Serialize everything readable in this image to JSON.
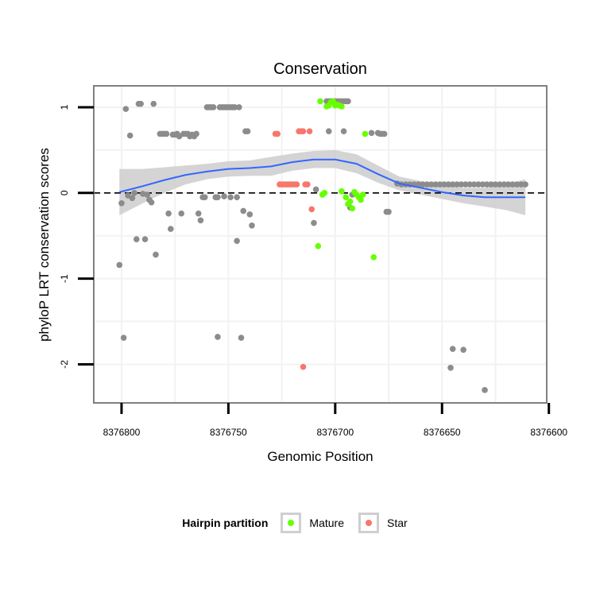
{
  "chart_data": {
    "type": "scatter",
    "title": "Conservation",
    "xlabel": "Genomic Position",
    "ylabel": "phyloP LRT conservation scores",
    "x_reversed": true,
    "xlim": [
      8376601,
      8376813
    ],
    "ylim": [
      -2.45,
      1.25
    ],
    "xticks": [
      8376800,
      8376750,
      8376700,
      8376650,
      8376600
    ],
    "xtick_labels": [
      "8376800",
      "8376750",
      "8376700",
      "8376650",
      "8376600"
    ],
    "yticks": [
      1,
      0,
      -1,
      -2
    ],
    "ytick_labels": [
      "1",
      "0",
      "-1",
      "-2"
    ],
    "reference_line": {
      "y": 0,
      "style": "dashed"
    },
    "colors": {
      "Other": "#8c8c8c",
      "Mature": "#66ff00",
      "Star": "#f8766d",
      "smooth": "#3366ff",
      "ribbon": "#cccccc",
      "panel_border": "#808080",
      "grid": "#f2f2f2"
    },
    "legend": {
      "title": "Hairpin partition",
      "position": "bottom",
      "entries": [
        {
          "label": "Mature",
          "color": "#66ff00"
        },
        {
          "label": "Star",
          "color": "#f8766d"
        }
      ]
    },
    "series": [
      {
        "name": "Other",
        "points": [
          [
            8376801,
            -0.84
          ],
          [
            8376800,
            -0.12
          ],
          [
            8376799,
            -1.69
          ],
          [
            8376798,
            0.98
          ],
          [
            8376797,
            -0.03
          ],
          [
            8376796,
            0.67
          ],
          [
            8376795,
            -0.06
          ],
          [
            8376794,
            0.0
          ],
          [
            8376793,
            -0.54
          ],
          [
            8376792,
            1.04
          ],
          [
            8376791,
            1.04
          ],
          [
            8376790,
            -0.01
          ],
          [
            8376789,
            -0.54
          ],
          [
            8376788,
            -0.02
          ],
          [
            8376787,
            -0.08
          ],
          [
            8376786,
            -0.11
          ],
          [
            8376785,
            1.04
          ],
          [
            8376784,
            -0.72
          ],
          [
            8376782,
            0.69
          ],
          [
            8376781,
            0.69
          ],
          [
            8376780,
            0.69
          ],
          [
            8376779,
            0.69
          ],
          [
            8376778,
            -0.24
          ],
          [
            8376777,
            -0.42
          ],
          [
            8376776,
            0.68
          ],
          [
            8376775,
            0.68
          ],
          [
            8376774,
            0.69
          ],
          [
            8376773,
            0.66
          ],
          [
            8376772,
            -0.24
          ],
          [
            8376771,
            0.69
          ],
          [
            8376770,
            0.69
          ],
          [
            8376769,
            0.69
          ],
          [
            8376768,
            0.66
          ],
          [
            8376767,
            0.68
          ],
          [
            8376766,
            0.66
          ],
          [
            8376765,
            0.69
          ],
          [
            8376764,
            -0.24
          ],
          [
            8376763,
            -0.32
          ],
          [
            8376762,
            -0.05
          ],
          [
            8376761,
            -0.05
          ],
          [
            8376760,
            1.0
          ],
          [
            8376759,
            1.0
          ],
          [
            8376758,
            1.0
          ],
          [
            8376757,
            1.0
          ],
          [
            8376756,
            -0.05
          ],
          [
            8376755,
            -0.05
          ],
          [
            8376754,
            1.0
          ],
          [
            8376753,
            1.0
          ],
          [
            8376752,
            1.0
          ],
          [
            8376751,
            1.0
          ],
          [
            8376750,
            1.0
          ],
          [
            8376749,
            1.0
          ],
          [
            8376748,
            1.0
          ],
          [
            8376747,
            1.0
          ],
          [
            8376746,
            -0.56
          ],
          [
            8376745,
            1.0
          ],
          [
            8376744,
            -1.69
          ],
          [
            8376743,
            -0.21
          ],
          [
            8376742,
            0.72
          ],
          [
            8376741,
            0.72
          ],
          [
            8376740,
            -0.25
          ],
          [
            8376739,
            -0.38
          ],
          [
            8376755,
            -1.68
          ],
          [
            8376746,
            -0.05
          ],
          [
            8376749,
            -0.05
          ],
          [
            8376752,
            -0.04
          ],
          [
            8376709,
            0.04
          ],
          [
            8376710,
            -0.35
          ],
          [
            8376703,
            0.72
          ],
          [
            8376696,
            0.72
          ],
          [
            8376693,
            -0.17
          ],
          [
            8376694,
            1.07
          ],
          [
            8376695,
            1.07
          ],
          [
            8376696,
            1.07
          ],
          [
            8376697,
            1.07
          ],
          [
            8376698,
            1.07
          ],
          [
            8376699,
            1.07
          ],
          [
            8376700,
            1.07
          ],
          [
            8376701,
            1.07
          ],
          [
            8376702,
            1.07
          ],
          [
            8376703,
            1.07
          ],
          [
            8376704,
            1.07
          ],
          [
            8376692,
            -0.02
          ],
          [
            8376691,
            0.0
          ],
          [
            8376683,
            0.7
          ],
          [
            8376680,
            0.7
          ],
          [
            8376679,
            0.69
          ],
          [
            8376678,
            0.69
          ],
          [
            8376677,
            0.69
          ],
          [
            8376676,
            -0.22
          ],
          [
            8376675,
            -0.22
          ],
          [
            8376671,
            0.11
          ],
          [
            8376669,
            0.1
          ],
          [
            8376667,
            0.1
          ],
          [
            8376665,
            0.1
          ],
          [
            8376663,
            0.1
          ],
          [
            8376661,
            0.1
          ],
          [
            8376659,
            0.1
          ],
          [
            8376657,
            0.1
          ],
          [
            8376655,
            0.1
          ],
          [
            8376653,
            0.1
          ],
          [
            8376651,
            0.1
          ],
          [
            8376649,
            0.1
          ],
          [
            8376647,
            0.1
          ],
          [
            8376645,
            0.1
          ],
          [
            8376643,
            0.1
          ],
          [
            8376641,
            0.1
          ],
          [
            8376639,
            0.1
          ],
          [
            8376637,
            0.1
          ],
          [
            8376635,
            0.1
          ],
          [
            8376633,
            0.1
          ],
          [
            8376631,
            0.1
          ],
          [
            8376629,
            0.1
          ],
          [
            8376627,
            0.1
          ],
          [
            8376625,
            0.1
          ],
          [
            8376623,
            0.1
          ],
          [
            8376621,
            0.1
          ],
          [
            8376619,
            0.1
          ],
          [
            8376617,
            0.1
          ],
          [
            8376615,
            0.1
          ],
          [
            8376613,
            0.1
          ],
          [
            8376611,
            0.1
          ],
          [
            8376646,
            -2.04
          ],
          [
            8376645,
            -1.82
          ],
          [
            8376640,
            -1.83
          ],
          [
            8376630,
            -2.3
          ]
        ]
      },
      {
        "name": "Mature",
        "points": [
          [
            8376708,
            -0.62
          ],
          [
            8376707,
            1.07
          ],
          [
            8376706,
            -0.02
          ],
          [
            8376705,
            0.0
          ],
          [
            8376704,
            1.01
          ],
          [
            8376703,
            1.02
          ],
          [
            8376702,
            1.06
          ],
          [
            8376701,
            1.07
          ],
          [
            8376700,
            1.02
          ],
          [
            8376699,
            1.03
          ],
          [
            8376698,
            1.02
          ],
          [
            8376697,
            1.01
          ],
          [
            8376697,
            0.02
          ],
          [
            8376695,
            -0.05
          ],
          [
            8376694,
            -0.13
          ],
          [
            8376693,
            -0.1
          ],
          [
            8376692,
            -0.18
          ],
          [
            8376691,
            0.01
          ],
          [
            8376690,
            -0.02
          ],
          [
            8376689,
            -0.05
          ],
          [
            8376688,
            -0.08
          ],
          [
            8376687,
            -0.02
          ],
          [
            8376686,
            0.69
          ],
          [
            8376682,
            -0.75
          ]
        ]
      },
      {
        "name": "Star",
        "points": [
          [
            8376728,
            0.69
          ],
          [
            8376727,
            0.69
          ],
          [
            8376726,
            0.1
          ],
          [
            8376725,
            0.1
          ],
          [
            8376724,
            0.1
          ],
          [
            8376723,
            0.1
          ],
          [
            8376722,
            0.1
          ],
          [
            8376721,
            0.1
          ],
          [
            8376720,
            0.1
          ],
          [
            8376719,
            0.1
          ],
          [
            8376718,
            0.1
          ],
          [
            8376717,
            0.72
          ],
          [
            8376716,
            0.72
          ],
          [
            8376715,
            0.72
          ],
          [
            8376714,
            0.1
          ],
          [
            8376713,
            0.1
          ],
          [
            8376712,
            0.72
          ],
          [
            8376711,
            -0.19
          ],
          [
            8376715,
            -2.03
          ]
        ]
      }
    ],
    "smooth": {
      "x": [
        8376801,
        8376790,
        8376780,
        8376770,
        8376760,
        8376750,
        8376740,
        8376730,
        8376720,
        8376710,
        8376700,
        8376690,
        8376680,
        8376670,
        8376660,
        8376650,
        8376640,
        8376630,
        8376620,
        8376611
      ],
      "y": [
        0.01,
        0.08,
        0.15,
        0.21,
        0.25,
        0.28,
        0.29,
        0.31,
        0.36,
        0.39,
        0.39,
        0.34,
        0.22,
        0.11,
        0.06,
        0.01,
        -0.03,
        -0.05,
        -0.05,
        -0.05
      ],
      "lower": [
        -0.26,
        -0.12,
        0.0,
        0.1,
        0.16,
        0.19,
        0.2,
        0.2,
        0.26,
        0.29,
        0.29,
        0.23,
        0.12,
        0.03,
        -0.02,
        -0.07,
        -0.12,
        -0.16,
        -0.2,
        -0.26
      ],
      "upper": [
        0.28,
        0.28,
        0.3,
        0.32,
        0.34,
        0.37,
        0.38,
        0.42,
        0.46,
        0.49,
        0.5,
        0.45,
        0.32,
        0.19,
        0.14,
        0.09,
        0.06,
        0.06,
        0.1,
        0.16
      ]
    }
  }
}
